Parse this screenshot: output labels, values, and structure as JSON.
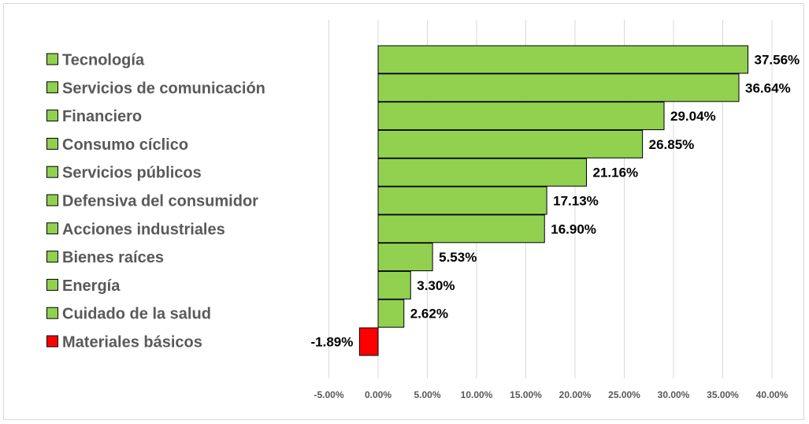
{
  "colors": {
    "positive": "#92d050",
    "negative": "#ff0000",
    "grid": "#d9d9d9",
    "text": "#595959"
  },
  "chart_data": {
    "type": "bar",
    "orientation": "horizontal",
    "title": "",
    "xlabel": "",
    "ylabel": "",
    "categories": [
      "Tecnología",
      "Servicios de comunicación",
      "Financiero",
      "Consumo cíclico",
      "Servicios públicos",
      "Defensiva del consumidor",
      "Acciones industriales",
      "Bienes raíces",
      "Energía",
      "Cuidado de la salud",
      "Materiales básicos"
    ],
    "values": [
      37.56,
      36.64,
      29.04,
      26.85,
      21.16,
      17.13,
      16.9,
      5.53,
      3.3,
      2.62,
      -1.89
    ],
    "value_labels": [
      "37.56%",
      "36.64%",
      "29.04%",
      "26.85%",
      "21.16%",
      "17.13%",
      "16.90%",
      "5.53%",
      "3.30%",
      "2.62%",
      "-1.89%"
    ],
    "xlim": [
      -5,
      40
    ],
    "ticks": [
      -5,
      0,
      5,
      10,
      15,
      20,
      25,
      30,
      35,
      40
    ],
    "tick_labels": [
      "-5.00%",
      "0.00%",
      "5.00%",
      "10.00%",
      "15.00%",
      "20.00%",
      "25.00%",
      "30.00%",
      "35.00%",
      "40.00%"
    ],
    "grid": true,
    "legend": "none"
  }
}
